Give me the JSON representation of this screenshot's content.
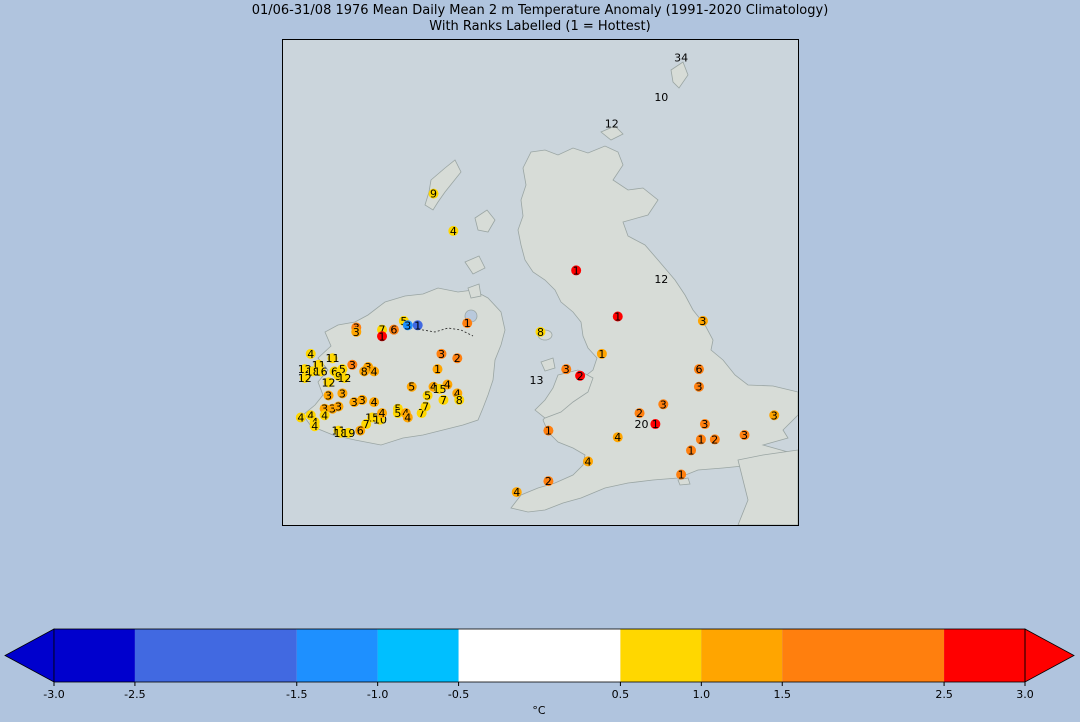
{
  "title": {
    "line1": "01/06-31/08 1976 Mean Daily Mean 2 m Temperature Anomaly (1991-2020 Climatology)",
    "line2": "With Ranks Labelled (1 = Hottest)"
  },
  "colorbar": {
    "unit": "°C",
    "ticks": [
      "-3.0",
      "-2.5",
      "-1.5",
      "-1.0",
      "-0.5",
      "0.5",
      "1.0",
      "1.5",
      "2.5",
      "3.0"
    ],
    "bins": [
      {
        "from": -3.0,
        "to": -2.5,
        "color": "#0000cd"
      },
      {
        "from": -2.5,
        "to": -1.5,
        "color": "#4169e1"
      },
      {
        "from": -1.5,
        "to": -1.0,
        "color": "#1e90ff"
      },
      {
        "from": -1.0,
        "to": -0.5,
        "color": "#00bfff"
      },
      {
        "from": -0.5,
        "to": 0.5,
        "color": "#ffffff"
      },
      {
        "from": 0.5,
        "to": 1.0,
        "color": "#ffd700"
      },
      {
        "from": 1.0,
        "to": 1.5,
        "color": "#ffa500"
      },
      {
        "from": 1.5,
        "to": 2.5,
        "color": "#ff7f0e"
      },
      {
        "from": 2.5,
        "to": 3.0,
        "color": "#ff0000"
      }
    ],
    "extend_min_color": "#0000cd",
    "extend_max_color": "#ff0000"
  },
  "stations": [
    {
      "rank": "34",
      "lon": -0.95,
      "lat": 60.45,
      "c": "none"
    },
    {
      "rank": "10",
      "lon": -1.45,
      "lat": 59.55,
      "c": "none"
    },
    {
      "rank": "12",
      "lon": -2.7,
      "lat": 58.95,
      "c": "none"
    },
    {
      "rank": "9",
      "lon": -7.2,
      "lat": 57.35,
      "c": "#ffd700"
    },
    {
      "rank": "4",
      "lon": -6.7,
      "lat": 56.5,
      "c": "#ffd700"
    },
    {
      "rank": "1",
      "lon": -3.6,
      "lat": 55.6,
      "c": "#ff0000"
    },
    {
      "rank": "12",
      "lon": -1.45,
      "lat": 55.4,
      "c": "none"
    },
    {
      "rank": "1",
      "lon": -2.55,
      "lat": 54.55,
      "c": "#ff0000"
    },
    {
      "rank": "3",
      "lon": -0.4,
      "lat": 54.45,
      "c": "#ffa500"
    },
    {
      "rank": "8",
      "lon": -4.5,
      "lat": 54.2,
      "c": "#ffd700"
    },
    {
      "rank": "1",
      "lon": -2.95,
      "lat": 53.7,
      "c": "#ffa500"
    },
    {
      "rank": "3",
      "lon": -3.85,
      "lat": 53.35,
      "c": "#ff7f0e"
    },
    {
      "rank": "2",
      "lon": -3.5,
      "lat": 53.2,
      "c": "#ff0000"
    },
    {
      "rank": "6",
      "lon": -0.5,
      "lat": 53.35,
      "c": "#ff7f0e"
    },
    {
      "rank": "3",
      "lon": -0.5,
      "lat": 52.95,
      "c": "#ff7f0e"
    },
    {
      "rank": "13",
      "lon": -4.6,
      "lat": 53.1,
      "c": "none"
    },
    {
      "rank": "3",
      "lon": -1.4,
      "lat": 52.55,
      "c": "#ff7f0e"
    },
    {
      "rank": "2",
      "lon": -2.0,
      "lat": 52.35,
      "c": "#ff7f0e"
    },
    {
      "rank": "3",
      "lon": 1.4,
      "lat": 52.3,
      "c": "#ffa500"
    },
    {
      "rank": "1",
      "lon": -1.6,
      "lat": 52.1,
      "c": "#ff0000"
    },
    {
      "rank": "20",
      "lon": -1.95,
      "lat": 52.1,
      "c": "none"
    },
    {
      "rank": "3",
      "lon": -0.35,
      "lat": 52.1,
      "c": "#ff7f0e"
    },
    {
      "rank": "1",
      "lon": -4.3,
      "lat": 51.95,
      "c": "#ff7f0e"
    },
    {
      "rank": "4",
      "lon": -2.55,
      "lat": 51.8,
      "c": "#ffa500"
    },
    {
      "rank": "1",
      "lon": -0.45,
      "lat": 51.75,
      "c": "#ff7f0e"
    },
    {
      "rank": "2",
      "lon": -0.1,
      "lat": 51.75,
      "c": "#ff7f0e"
    },
    {
      "rank": "3",
      "lon": 0.65,
      "lat": 51.85,
      "c": "#ff7f0e"
    },
    {
      "rank": "1",
      "lon": -0.7,
      "lat": 51.5,
      "c": "#ff7f0e"
    },
    {
      "rank": "4",
      "lon": -3.3,
      "lat": 51.25,
      "c": "#ffa500"
    },
    {
      "rank": "1",
      "lon": -0.95,
      "lat": 50.95,
      "c": "#ff7f0e"
    },
    {
      "rank": "2",
      "lon": -4.3,
      "lat": 50.8,
      "c": "#ff7f0e"
    },
    {
      "rank": "4",
      "lon": -5.1,
      "lat": 50.55,
      "c": "#ffa500"
    },
    {
      "rank": "3",
      "lon": -9.15,
      "lat": 54.3,
      "c": "#ff7f0e"
    },
    {
      "rank": "3",
      "lon": -9.15,
      "lat": 54.2,
      "c": "#ffa500"
    },
    {
      "rank": "7",
      "lon": -8.5,
      "lat": 54.25,
      "c": "#ffd700"
    },
    {
      "rank": "6",
      "lon": -8.2,
      "lat": 54.25,
      "c": "#ff7f0e"
    },
    {
      "rank": "5",
      "lon": -7.95,
      "lat": 54.45,
      "c": "#ffd700"
    },
    {
      "rank": "3",
      "lon": -7.85,
      "lat": 54.35,
      "c": "#1e90ff"
    },
    {
      "rank": "1",
      "lon": -7.6,
      "lat": 54.35,
      "c": "#4169e1"
    },
    {
      "rank": "1",
      "lon": -6.35,
      "lat": 54.4,
      "c": "#ff7f0e"
    },
    {
      "rank": "1",
      "lon": -8.5,
      "lat": 54.1,
      "c": "#ff0000"
    },
    {
      "rank": "3",
      "lon": -7.0,
      "lat": 53.7,
      "c": "#ff7f0e"
    },
    {
      "rank": "2",
      "lon": -6.6,
      "lat": 53.6,
      "c": "#ff7f0e"
    },
    {
      "rank": "4",
      "lon": -10.3,
      "lat": 53.7,
      "c": "#ffd700"
    },
    {
      "rank": "11",
      "lon": -9.75,
      "lat": 53.6,
      "c": "#ffd700"
    },
    {
      "rank": "11",
      "lon": -10.1,
      "lat": 53.45,
      "c": "#ffd700"
    },
    {
      "rank": "12",
      "lon": -10.45,
      "lat": 53.35,
      "c": "#ffd700"
    },
    {
      "rank": "18",
      "lon": -10.25,
      "lat": 53.3,
      "c": "#ffd700"
    },
    {
      "rank": "16",
      "lon": -10.05,
      "lat": 53.3,
      "c": "#ffd700"
    },
    {
      "rank": "5",
      "lon": -9.5,
      "lat": 53.35,
      "c": "#ffd700"
    },
    {
      "rank": "6",
      "lon": -9.7,
      "lat": 53.3,
      "c": "#ffd700"
    },
    {
      "rank": "3",
      "lon": -9.25,
      "lat": 53.45,
      "c": "#ff7f0e"
    },
    {
      "rank": "3",
      "lon": -8.85,
      "lat": 53.4,
      "c": "#ffa500"
    },
    {
      "rank": "8",
      "lon": -8.95,
      "lat": 53.3,
      "c": "#ffa500"
    },
    {
      "rank": "4",
      "lon": -8.7,
      "lat": 53.3,
      "c": "#ffa500"
    },
    {
      "rank": "12",
      "lon": -10.45,
      "lat": 53.15,
      "c": "#ffd700"
    },
    {
      "rank": "12",
      "lon": -9.85,
      "lat": 53.05,
      "c": "#ffd700"
    },
    {
      "rank": "9",
      "lon": -9.6,
      "lat": 53.2,
      "c": "#ffd700"
    },
    {
      "rank": "12",
      "lon": -9.45,
      "lat": 53.15,
      "c": "#ffd700"
    },
    {
      "rank": "1",
      "lon": -7.1,
      "lat": 53.35,
      "c": "#ffa500"
    },
    {
      "rank": "5",
      "lon": -7.75,
      "lat": 52.95,
      "c": "#ffa500"
    },
    {
      "rank": "4",
      "lon": -7.2,
      "lat": 52.95,
      "c": "#ffa500"
    },
    {
      "rank": "4",
      "lon": -6.85,
      "lat": 53.0,
      "c": "#ffa500"
    },
    {
      "rank": "15",
      "lon": -7.05,
      "lat": 52.9,
      "c": "#ffd700"
    },
    {
      "rank": "4",
      "lon": -6.6,
      "lat": 52.8,
      "c": "#ffa500"
    },
    {
      "rank": "3",
      "lon": -9.85,
      "lat": 52.75,
      "c": "#ffa500"
    },
    {
      "rank": "3",
      "lon": -9.5,
      "lat": 52.8,
      "c": "#ffa500"
    },
    {
      "rank": "3",
      "lon": -9.2,
      "lat": 52.6,
      "c": "#ffa500"
    },
    {
      "rank": "3",
      "lon": -9.0,
      "lat": 52.65,
      "c": "#ffa500"
    },
    {
      "rank": "4",
      "lon": -8.7,
      "lat": 52.6,
      "c": "#ffa500"
    },
    {
      "rank": "5",
      "lon": -7.35,
      "lat": 52.75,
      "c": "#ffd700"
    },
    {
      "rank": "7",
      "lon": -6.95,
      "lat": 52.65,
      "c": "#ffd700"
    },
    {
      "rank": "8",
      "lon": -6.55,
      "lat": 52.65,
      "c": "#ffd700"
    },
    {
      "rank": "3",
      "lon": -9.95,
      "lat": 52.45,
      "c": "#ffa500"
    },
    {
      "rank": "3",
      "lon": -9.75,
      "lat": 52.45,
      "c": "#ffa500"
    },
    {
      "rank": "3",
      "lon": -9.6,
      "lat": 52.5,
      "c": "#ffa500"
    },
    {
      "rank": "4",
      "lon": -10.55,
      "lat": 52.25,
      "c": "#ffd700"
    },
    {
      "rank": "4",
      "lon": -10.3,
      "lat": 52.3,
      "c": "#ffd700"
    },
    {
      "rank": "4",
      "lon": -9.95,
      "lat": 52.3,
      "c": "#ffd700"
    },
    {
      "rank": "4",
      "lon": -10.2,
      "lat": 52.15,
      "c": "#ffd700"
    },
    {
      "rank": "4",
      "lon": -10.2,
      "lat": 52.05,
      "c": "#ffd700"
    },
    {
      "rank": "15",
      "lon": -8.75,
      "lat": 52.25,
      "c": "#ffd700"
    },
    {
      "rank": "10",
      "lon": -8.55,
      "lat": 52.2,
      "c": "#ffd700"
    },
    {
      "rank": "4",
      "lon": -8.5,
      "lat": 52.35,
      "c": "#ffa500"
    },
    {
      "rank": "5",
      "lon": -8.1,
      "lat": 52.45,
      "c": "#ffd700"
    },
    {
      "rank": "5",
      "lon": -8.1,
      "lat": 52.35,
      "c": "#ffd700"
    },
    {
      "rank": "4",
      "lon": -7.9,
      "lat": 52.35,
      "c": "#ffa500"
    },
    {
      "rank": "4",
      "lon": -7.85,
      "lat": 52.25,
      "c": "#ffa500"
    },
    {
      "rank": "7",
      "lon": -7.5,
      "lat": 52.35,
      "c": "#ffd700"
    },
    {
      "rank": "7",
      "lon": -7.4,
      "lat": 52.5,
      "c": "#ffd700"
    },
    {
      "rank": "7",
      "lon": -8.9,
      "lat": 52.1,
      "c": "#ffd700"
    },
    {
      "rank": "6",
      "lon": -9.05,
      "lat": 51.95,
      "c": "#ffa500"
    },
    {
      "rank": "11",
      "lon": -9.6,
      "lat": 51.95,
      "c": "#ffd700"
    },
    {
      "rank": "18",
      "lon": -9.55,
      "lat": 51.9,
      "c": "#ffd700"
    },
    {
      "rank": "19",
      "lon": -9.35,
      "lat": 51.9,
      "c": "#ffd700"
    }
  ]
}
